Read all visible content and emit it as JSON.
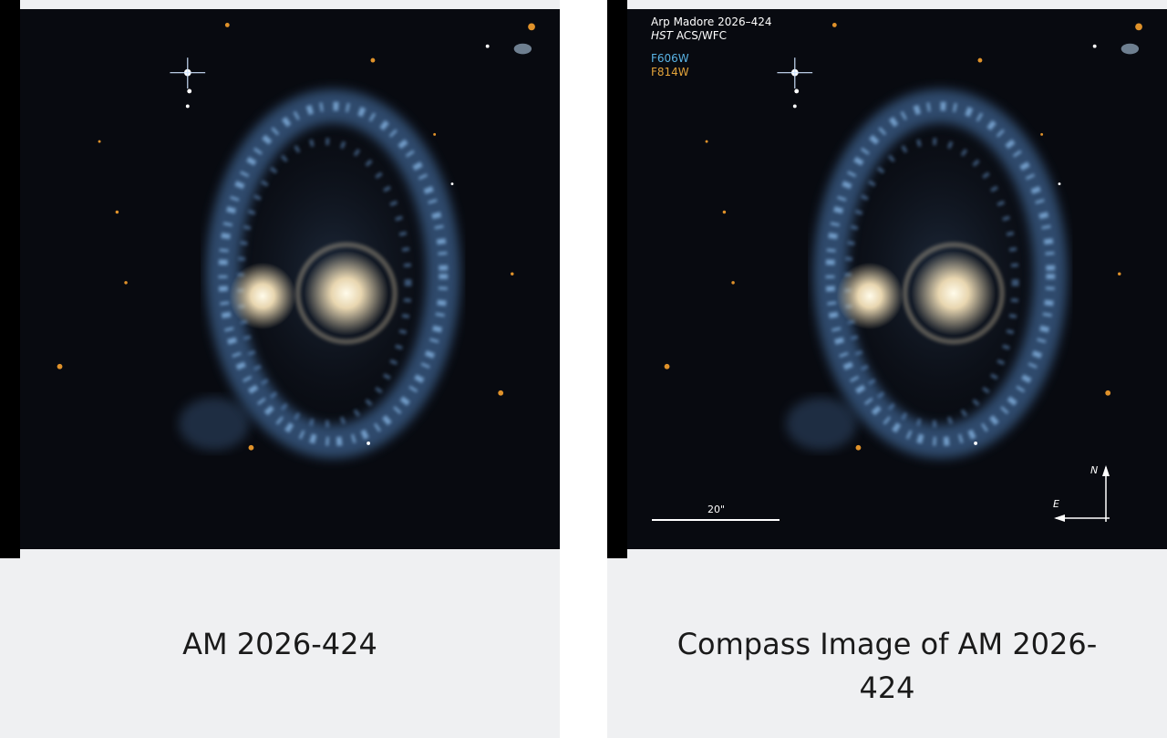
{
  "cards": [
    {
      "caption": "AM 2026-424"
    },
    {
      "caption": "Compass Image of AM 2026-424",
      "overlay": {
        "object_name": "Arp Madore 2026–424",
        "telescope": "HST",
        "camera": "ACS/WFC",
        "filters": [
          "F606W",
          "F814W"
        ],
        "scale_label": "20\"",
        "north": "N",
        "east": "E"
      }
    }
  ]
}
